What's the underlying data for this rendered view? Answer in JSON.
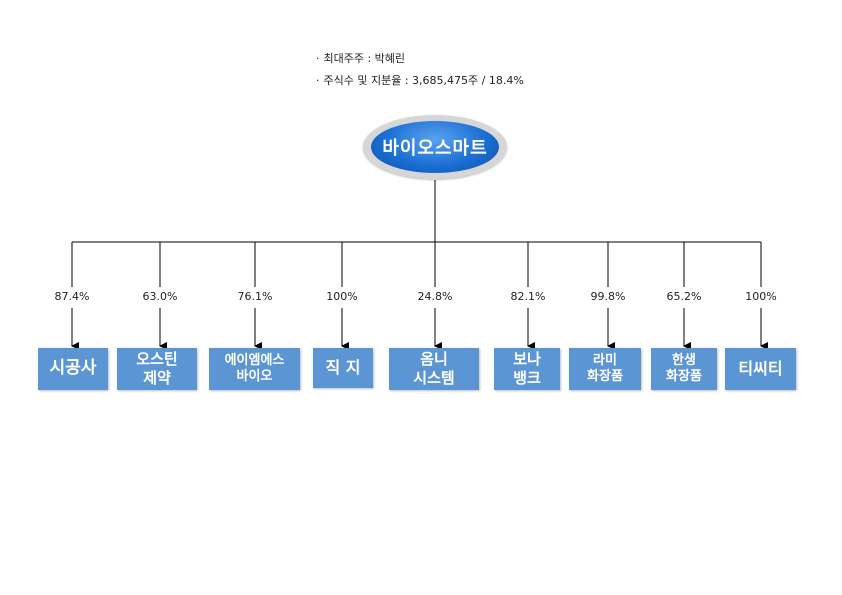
{
  "info": {
    "largest_shareholder": "최대주주 : 박혜린",
    "shares_and_stake": "주식수 및 지분율 : 3,685,475주 / 18.4%",
    "bullet": "·"
  },
  "root": {
    "label": "바이오스마트"
  },
  "subsidiaries": [
    {
      "name": "시공사",
      "stake": "87.4%"
    },
    {
      "name": "오스틴\n제약",
      "stake": "63.0%"
    },
    {
      "name": "에이엠에스\n바이오",
      "stake": "76.1%"
    },
    {
      "name": "직 지",
      "stake": "100%"
    },
    {
      "name": "옴니\n시스템",
      "stake": "24.8%"
    },
    {
      "name": "보나\n뱅크",
      "stake": "82.1%"
    },
    {
      "name": "라미\n화장품",
      "stake": "99.8%"
    },
    {
      "name": "한생\n화장품",
      "stake": "65.2%"
    },
    {
      "name": "티씨티",
      "stake": "100%"
    }
  ],
  "colors": {
    "box": "#5c95d3",
    "root": "#1b6fd4",
    "line": "#000000"
  }
}
